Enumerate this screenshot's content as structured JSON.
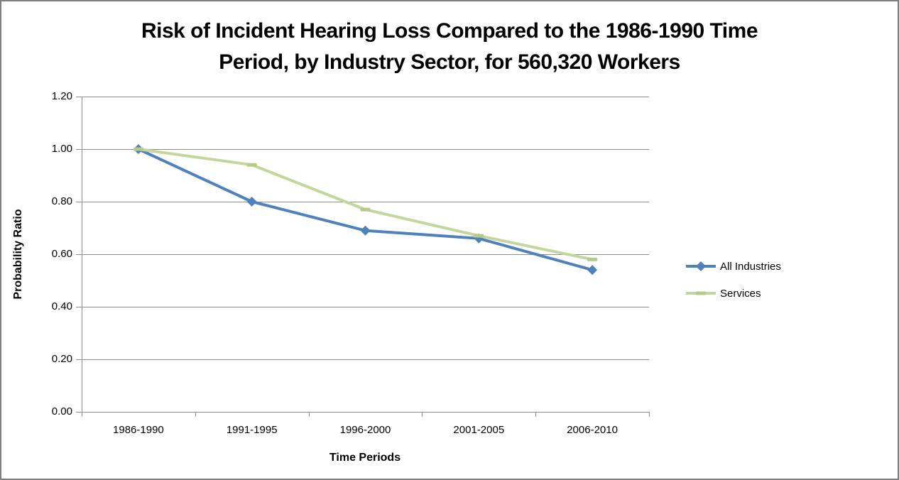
{
  "page": {
    "background": "#ffffff",
    "border_color": "#7f7f7f"
  },
  "chart_data": {
    "type": "line",
    "title": "Risk of Incident Hearing Loss Compared to the 1986-1990 Time Period, by Industry Sector, for 560,320 Workers",
    "title_lines": [
      "Risk of Incident Hearing Loss Compared to the 1986-1990 Time",
      "Period, by Industry Sector, for 560,320 Workers"
    ],
    "xlabel": "Time Periods",
    "ylabel": "Probability Ratio",
    "categories": [
      "1986-1990",
      "1991-1995",
      "1996-2000",
      "2001-2005",
      "2006-2010"
    ],
    "series": [
      {
        "name": "All Industries",
        "color": "#4F81BD",
        "marker": "diamond",
        "marker_color": "#4F81BD",
        "values": [
          1.0,
          0.8,
          0.69,
          0.66,
          0.54
        ]
      },
      {
        "name": "Services",
        "color": "#C3D69B",
        "marker": "dash",
        "marker_color": "#B5CB8B",
        "values": [
          1.0,
          0.94,
          0.77,
          0.67,
          0.58
        ]
      }
    ],
    "ylim": [
      0.0,
      1.2
    ],
    "y_ticks": {
      "values": [
        1.2,
        1.0,
        0.8,
        0.6,
        0.4,
        0.2,
        0.0
      ],
      "labels": [
        "1.20",
        "1.00",
        "0.80",
        "0.60",
        "0.40",
        "0.20",
        "0.00"
      ]
    },
    "grid": "horizontal",
    "grid_color": "#8C8C8C",
    "axis_color": "#8C8C8C",
    "legend_position": "right"
  }
}
